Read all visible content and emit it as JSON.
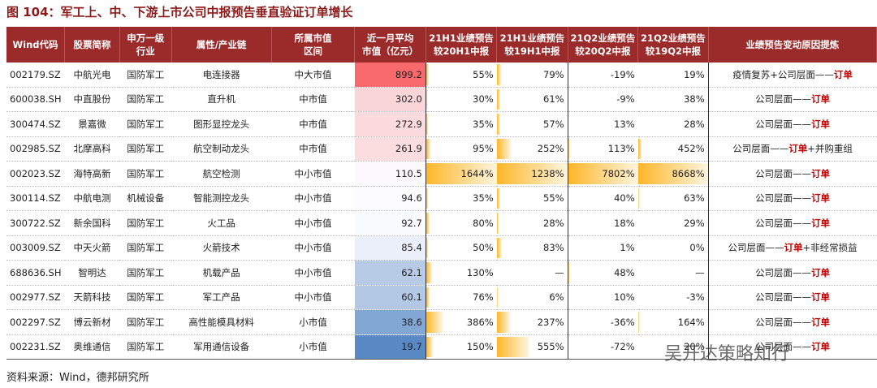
{
  "title": "图 104：军工上、中、下游上市公司中报预告垂直验证订单增长",
  "table": {
    "header": [
      "Wind代码",
      "股票简称",
      "申万一级\n行业",
      "属性/产业链",
      "所属市值\n区间",
      "近一月平均\n市值（亿元）",
      "21H1业绩预告\n较20H1中报",
      "21H1业绩预告\n较19H1中报",
      "21Q2业绩预告\n较20Q2中报",
      "21Q2业绩预告\n较19Q2中报",
      "业绩预告变动原因提炼"
    ],
    "rows": [
      [
        "002179.SZ",
        "中航光电",
        "国防军工",
        "电连接器",
        "中大市值",
        "899.2",
        "55%",
        "79%",
        "-19%",
        "19%",
        [
          "疫情复苏+公司层面——",
          "订单"
        ]
      ],
      [
        "600038.SH",
        "中直股份",
        "国防军工",
        "直升机",
        "中市值",
        "302.0",
        "30%",
        "61%",
        "-9%",
        "38%",
        [
          "公司层面——",
          "订单"
        ]
      ],
      [
        "300474.SZ",
        "景嘉微",
        "国防军工",
        "图形显控龙头",
        "中市值",
        "272.9",
        "35%",
        "57%",
        "13%",
        "28%",
        [
          "公司层面——",
          "订单"
        ]
      ],
      [
        "002985.SZ",
        "北摩高科",
        "国防军工",
        "航空制动龙头",
        "中市值",
        "261.9",
        "95%",
        "252%",
        "113%",
        "452%",
        [
          "公司层面——",
          "订单",
          "+并购重组"
        ]
      ],
      [
        "002023.SZ",
        "海特高新",
        "国防军工",
        "航空检测",
        "中小市值",
        "110.5",
        "1644%",
        "1238%",
        "7802%",
        "8668%",
        [
          "公司层面——",
          "订单"
        ]
      ],
      [
        "300114.SZ",
        "中航电测",
        "机械设备",
        "智能测控龙头",
        "中小市值",
        "94.6",
        "35%",
        "55%",
        "40%",
        "63%",
        [
          "公司层面——",
          "订单"
        ]
      ],
      [
        "300722.SZ",
        "新余国科",
        "国防军工",
        "火工品",
        "中小市值",
        "92.7",
        "80%",
        "28%",
        "18%",
        "29%",
        [
          "公司层面——",
          "订单"
        ]
      ],
      [
        "003009.SZ",
        "中天火箭",
        "国防军工",
        "火箭技术",
        "中小市值",
        "85.4",
        "50%",
        "83%",
        "1%",
        "0%",
        [
          "公司层面——",
          "订单",
          "+非经常损益"
        ]
      ],
      [
        "688636.SH",
        "智明达",
        "国防军工",
        "机载产品",
        "中小市值",
        "62.1",
        "130%",
        "—",
        "48%",
        "—",
        [
          "公司层面——",
          "订单"
        ]
      ],
      [
        "002977.SZ",
        "天箭科技",
        "国防军工",
        "军工产品",
        "中小市值",
        "60.1",
        "76%",
        "6%",
        "10%",
        "-3%",
        [
          "公司层面——",
          "订单"
        ]
      ],
      [
        "002297.SZ",
        "博云新材",
        "国防军工",
        "高性能模具材料",
        "小市值",
        "38.6",
        "386%",
        "237%",
        "-36%",
        "164%",
        [
          "公司层面——",
          "订单"
        ]
      ],
      [
        "002231.SZ",
        "奥维通信",
        "国防军工",
        "军用通信设备",
        "小市值",
        "19.7",
        "150%",
        "555%",
        "-72%",
        "20%",
        [
          "公司层面——",
          "订单"
        ]
      ]
    ]
  },
  "watermark": "吴开达策略知行",
  "source": "资料来源：Wind，德邦研究所"
}
